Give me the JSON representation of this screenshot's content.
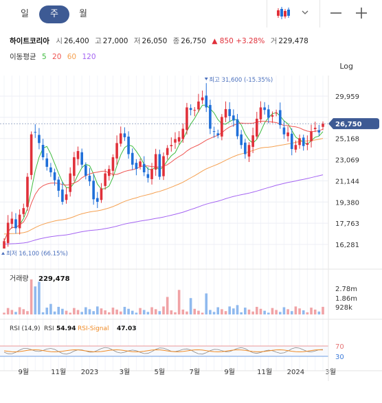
{
  "topbar": {
    "periods": [
      "일",
      "주",
      "월"
    ],
    "active_period": "주"
  },
  "stock": {
    "name": "하이트코리아",
    "open_label": "시",
    "open": "26,400",
    "high_label": "고",
    "high": "27,000",
    "low_label": "저",
    "low": "26,050",
    "close_label": "종",
    "close": "26,750",
    "change": "▲ 850",
    "change_pct": "+3.28%",
    "volume_label": "거",
    "volume": "229,478"
  },
  "ma_legend": {
    "label": "이동평균",
    "items": [
      {
        "period": "5",
        "color": "#3dbb3d"
      },
      {
        "period": "20",
        "color": "#ef5350"
      },
      {
        "period": "60",
        "color": "#f5a050"
      },
      {
        "period": "120",
        "color": "#a463f2"
      }
    ]
  },
  "scale_button": "Log",
  "price_axis": {
    "ticks": [
      29959,
      27460,
      25168,
      23069,
      21144,
      19380,
      17763,
      16281
    ],
    "tick_labels": [
      "29,959",
      "27,460",
      "25,168",
      "23,069",
      "21,144",
      "19,380",
      "17,763",
      "16,281"
    ],
    "current_label": "26,750",
    "current_color": "#3d5a94"
  },
  "annotations": {
    "high": "최고 31,600 (-15.35%)",
    "low": "최저 16,100 (66.15%)"
  },
  "volume_panel": {
    "label": "거래량",
    "value": "229,478",
    "ticks": [
      "2.78m",
      "1.86m",
      "928k"
    ]
  },
  "rsi_panel": {
    "label": "RSI (14,9)",
    "rsi_label": "RSI",
    "rsi_value": "54.94",
    "signal_label": "RSI-Signal",
    "signal_value": "47.03",
    "upper": "70",
    "lower": "30",
    "signal_color": "#f08a24",
    "bound_color": "#e57373",
    "lower_color": "#3d7bd8"
  },
  "x_axis": {
    "labels": [
      {
        "text": "9월",
        "index": 5
      },
      {
        "text": "11월",
        "index": 14
      },
      {
        "text": "2023",
        "index": 22
      },
      {
        "text": "3월",
        "index": 31
      },
      {
        "text": "5월",
        "index": 40
      },
      {
        "text": "7월",
        "index": 49
      },
      {
        "text": "9월",
        "index": 58
      },
      {
        "text": "11월",
        "index": 67
      },
      {
        "text": "2024",
        "index": 75
      },
      {
        "text": "3월",
        "index": 84
      }
    ]
  },
  "chart_data": {
    "type": "candlestick",
    "series": [
      {
        "name": "Price",
        "closes": [
          16500,
          17800,
          18100,
          17400,
          18400,
          18900,
          21500,
          25600,
          25800,
          24700,
          23300,
          22400,
          21900,
          21200,
          20300,
          19400,
          20000,
          21800,
          23300,
          23900,
          22600,
          21600,
          21100,
          19600,
          19400,
          20500,
          21800,
          22200,
          23300,
          24700,
          25700,
          25300,
          23600,
          22600,
          22200,
          22900,
          21900,
          21400,
          22200,
          23600,
          21500,
          23400,
          24200,
          24500,
          25100,
          25300,
          26200,
          28600,
          28300,
          28300,
          29300,
          29800,
          28600,
          26200,
          25900,
          25500,
          27500,
          28400,
          27600,
          27100,
          25400,
          24500,
          23600,
          24500,
          25500,
          27300,
          28600,
          28300,
          27400,
          27700,
          28000,
          26600,
          25600,
          25800,
          24100,
          24500,
          25200,
          24400,
          24700,
          25900,
          26300,
          25800,
          26750
        ],
        "colors": {
          "up": "#e0303a",
          "down": "#1f6fd9"
        }
      },
      {
        "name": "Volume"
      },
      {
        "name": "RSI"
      }
    ]
  }
}
